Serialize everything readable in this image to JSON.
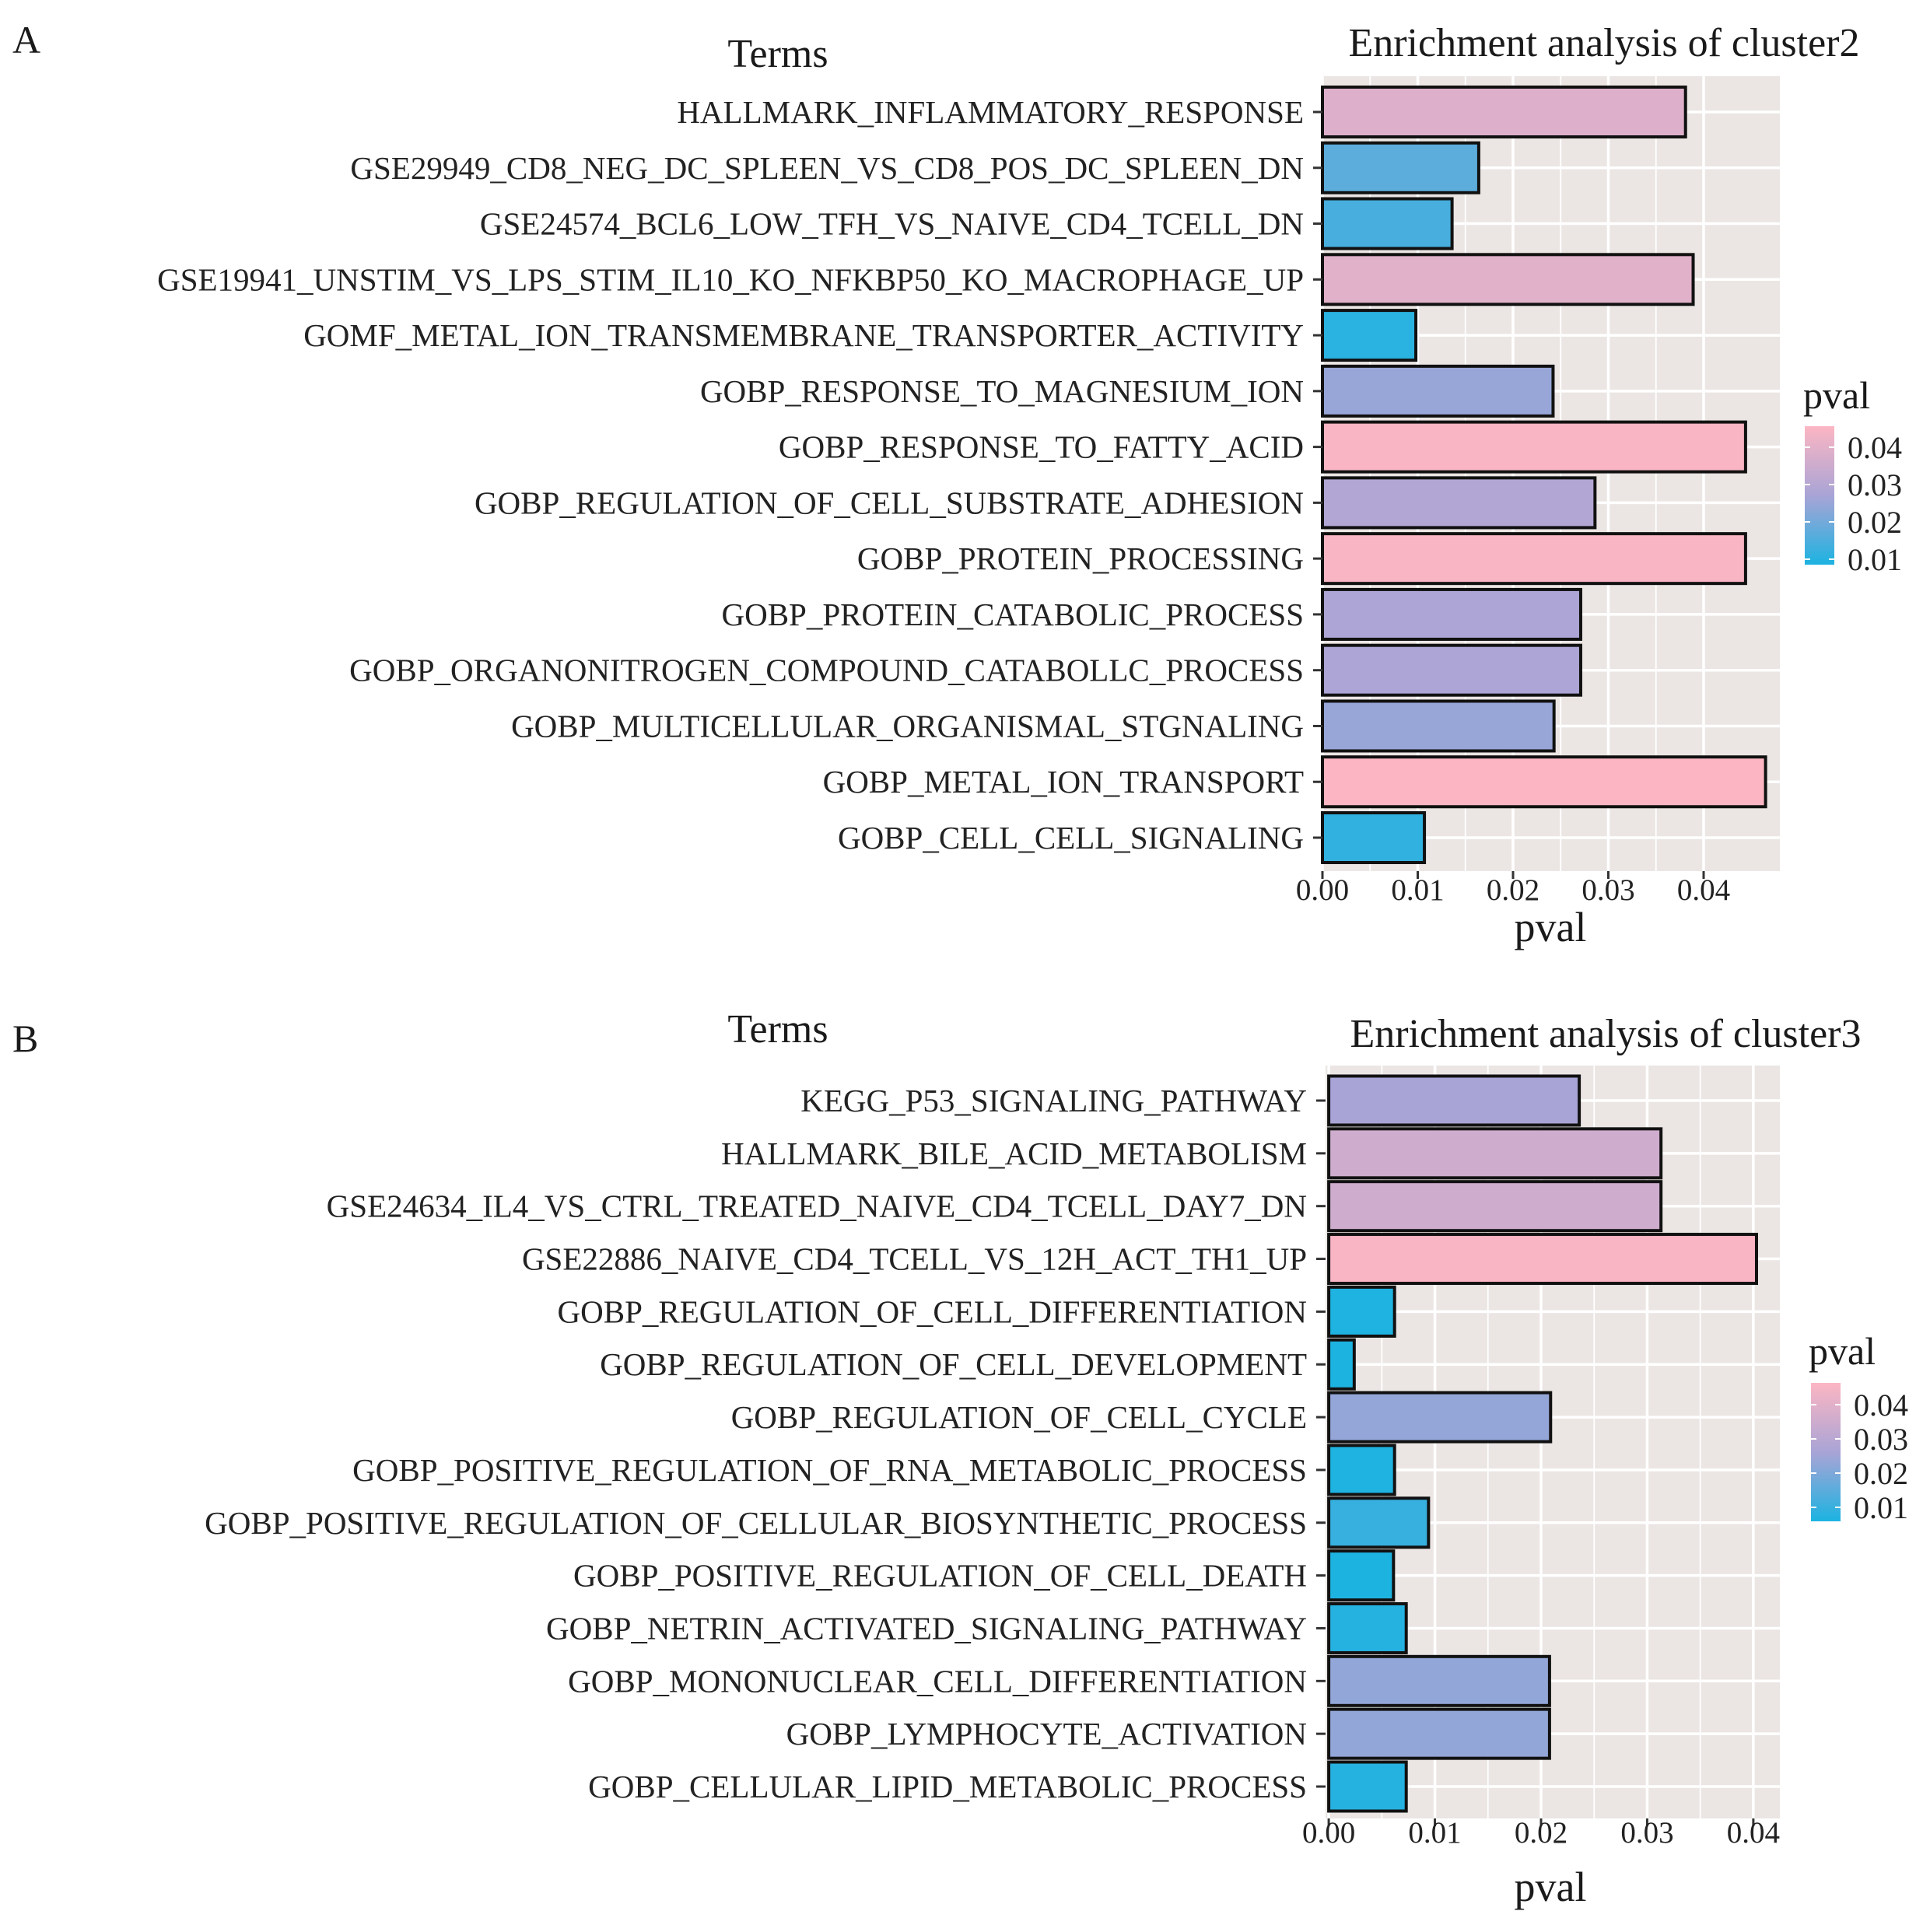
{
  "chart_data": [
    {
      "type": "bar",
      "orientation": "horizontal",
      "panel_label": "A",
      "title": "Enrichment analysis of cluster2",
      "ylabel": "Terms",
      "xlabel": "pval",
      "xlim": [
        0,
        0.048
      ],
      "xticks": [
        0,
        0.01,
        0.02,
        0.03,
        0.04
      ],
      "xtick_labels": [
        "0.00",
        "0.01",
        "0.02",
        "0.03",
        "0.04"
      ],
      "grid": true,
      "legend": {
        "title": "pval",
        "position": "right",
        "ticks": [
          "0.04",
          "0.03",
          "0.02",
          "0.01"
        ],
        "colors": {
          "low": "#1CB3E1",
          "mid": "#A9A4D6",
          "high": "#FCB6C3"
        },
        "range": [
          0.008,
          0.045
        ]
      },
      "categories": [
        "HALLMARK_INFLAMMATORY_RESPONSE",
        "GSE29949_CD8_NEG_DC_SPLEEN_VS_CD8_POS_DC_SPLEEN_DN",
        "GSE24574_BCL6_LOW_TFH_VS_NAIVE_CD4_TCELL_DN",
        "GSE19941_UNSTIM_VS_LPS_STIM_IL10_KO_NFKBP50_KO_MACROPHAGE_UP",
        "GOMF_METAL_ION_TRANSMEMBRANE_TRANSPORTER_ACTIVITY",
        "GOBP_RESPONSE_TO_MAGNESIUM_ION",
        "GOBP_RESPONSE_TO_FATTY_ACID",
        "GOBP_REGULATION_OF_CELL_SUBSTRATE_ADHESION",
        "GOBP_PROTEIN_PROCESSING",
        "GOBP_PROTEIN_CATABOLIC_PROCESS",
        "GOBP_ORGANONITROGEN_COMPOUND_CATABOLLC_PROCESS",
        "GOBP_MULTICELLULAR_ORGANISMAL_STGNALING",
        "GOBP_METAL_ION_TRANSPORT",
        "GOBP_CELL_CELL_SIGNALING"
      ],
      "values": [
        0.0381,
        0.0164,
        0.0136,
        0.0389,
        0.0098,
        0.0242,
        0.0444,
        0.0286,
        0.0444,
        0.0271,
        0.0271,
        0.0243,
        0.0465,
        0.0107
      ]
    },
    {
      "type": "bar",
      "orientation": "horizontal",
      "panel_label": "B",
      "title": "Enrichment analysis of cluster3",
      "ylabel": "Terms",
      "xlabel": "pval",
      "xlim": [
        -0.0003,
        0.0425
      ],
      "xticks": [
        0,
        0.01,
        0.02,
        0.03,
        0.04
      ],
      "xtick_labels": [
        "0.00",
        "0.01",
        "0.02",
        "0.03",
        "0.04"
      ],
      "grid": true,
      "legend": {
        "title": "pval",
        "position": "right",
        "ticks": [
          "0.04",
          "0.03",
          "0.02",
          "0.01"
        ],
        "colors": {
          "low": "#1CB3E1",
          "mid": "#A9A4D6",
          "high": "#FCB6C3"
        },
        "range": [
          0.006,
          0.041
        ]
      },
      "categories": [
        "KEGG_P53_SIGNALING_PATHWAY",
        "HALLMARK_BILE_ACID_METABOLISM",
        "GSE24634_IL4_VS_CTRL_TREATED_NAIVE_CD4_TCELL_DAY7_DN",
        "GSE22886_NAIVE_CD4_TCELL_VS_12H_ACT_TH1_UP",
        "GOBP_REGULATION_OF_CELL_DIFFERENTIATION",
        "GOBP_REGULATION_OF_CELL_DEVELOPMENT",
        "GOBP_REGULATION_OF_CELL_CYCLE",
        "GOBP_POSITIVE_REGULATION_OF_RNA_METABOLIC_PROCESS",
        "GOBP_POSITIVE_REGULATION_OF_CELLULAR_BIOSYNTHETIC_PROCESS",
        "GOBP_POSITIVE_REGULATION_OF_CELL_DEATH",
        "GOBP_NETRIN_ACTIVATED_SIGNALING_PATHWAY",
        "GOBP_MONONUCLEAR_CELL_DIFFERENTIATION",
        "GOBP_LYMPHOCYTE_ACTIVATION",
        "GOBP_CELLULAR_LIPID_METABOLIC_PROCESS"
      ],
      "values": [
        0.0236,
        0.0313,
        0.0313,
        0.0403,
        0.0062,
        0.0024,
        0.0209,
        0.0062,
        0.0094,
        0.0061,
        0.0073,
        0.0208,
        0.0208,
        0.0073
      ]
    }
  ]
}
